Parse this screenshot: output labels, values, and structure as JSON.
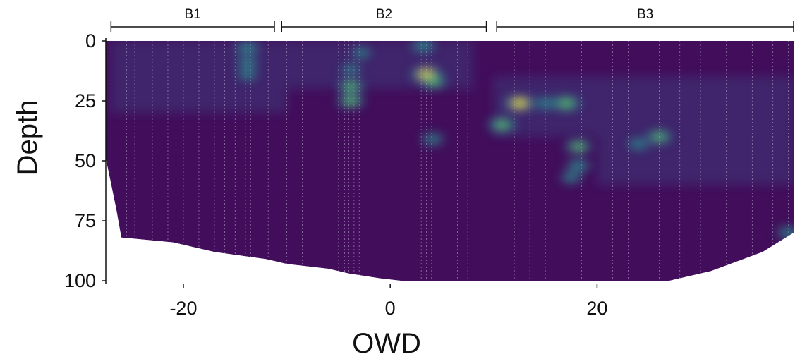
{
  "chart_data": {
    "type": "heatmap",
    "title": "",
    "xlabel": "OWD",
    "ylabel": "Depth",
    "xlim": [
      -27.5,
      39
    ],
    "ylim": [
      0,
      100
    ],
    "y_inverted": true,
    "x_ticks": [
      -20,
      0,
      20
    ],
    "x_tick_labels": [
      "-20",
      "0",
      "20"
    ],
    "y_ticks": [
      0,
      25,
      50,
      75,
      100
    ],
    "y_tick_labels": [
      "0",
      "25",
      "50",
      "75",
      "100"
    ],
    "grid": false,
    "legend": "none",
    "colormap": "viridis",
    "colors": {
      "low": "#420e5c",
      "mid": "#2b8a8c",
      "high": "#f2e52a",
      "sample_lines": "#d8d0e8",
      "axis": "#111111"
    },
    "brackets": [
      {
        "label": "B1",
        "x_start": -27,
        "x_end": -11.2
      },
      {
        "label": "B2",
        "x_start": -10.5,
        "x_end": 9.3
      },
      {
        "label": "B3",
        "x_start": 10.3,
        "x_end": 39
      }
    ],
    "sample_positions": [
      -27,
      -25.5,
      -24.7,
      -23,
      -21.5,
      -20,
      -18.5,
      -17,
      -16,
      -15,
      -14,
      -13.5,
      -11.8,
      -10,
      -8.5,
      -5,
      -4.4,
      -4,
      -3.5,
      -3,
      2,
      3,
      3.5,
      4,
      5,
      6.5,
      7.5,
      10.8,
      12,
      13.5,
      15,
      17,
      18.5,
      20,
      21.5,
      23,
      26,
      28,
      30,
      32.5,
      35,
      37,
      38.5
    ],
    "bottom_boundary": [
      {
        "x": -27.5,
        "depth": 49
      },
      {
        "x": -26.5,
        "depth": 70
      },
      {
        "x": -26,
        "depth": 82
      },
      {
        "x": -21,
        "depth": 84
      },
      {
        "x": -17,
        "depth": 88
      },
      {
        "x": -12,
        "depth": 91
      },
      {
        "x": -10,
        "depth": 93
      },
      {
        "x": -6,
        "depth": 95
      },
      {
        "x": -4,
        "depth": 97
      },
      {
        "x": -1,
        "depth": 99
      },
      {
        "x": 1,
        "depth": 100
      },
      {
        "x": 27,
        "depth": 100
      },
      {
        "x": 31,
        "depth": 96
      },
      {
        "x": 36,
        "depth": 88
      },
      {
        "x": 39,
        "depth": 80
      }
    ],
    "hotspots": [
      {
        "x": -13.8,
        "depth": 3,
        "intensity": 0.55
      },
      {
        "x": -13.8,
        "depth": 9,
        "intensity": 0.4
      },
      {
        "x": -13.8,
        "depth": 14,
        "intensity": 0.35
      },
      {
        "x": -3.8,
        "depth": 19,
        "intensity": 0.65
      },
      {
        "x": -3.8,
        "depth": 25,
        "intensity": 0.7
      },
      {
        "x": -3.8,
        "depth": 12,
        "intensity": 0.3
      },
      {
        "x": -2.8,
        "depth": 5,
        "intensity": 0.3
      },
      {
        "x": 3.2,
        "depth": 2,
        "intensity": 0.55
      },
      {
        "x": 3.5,
        "depth": 14,
        "intensity": 0.95
      },
      {
        "x": 4.2,
        "depth": 17,
        "intensity": 0.6
      },
      {
        "x": 4.1,
        "depth": 41,
        "intensity": 0.45
      },
      {
        "x": 10.8,
        "depth": 35,
        "intensity": 0.75
      },
      {
        "x": 12.5,
        "depth": 26,
        "intensity": 0.95
      },
      {
        "x": 15,
        "depth": 26,
        "intensity": 0.45
      },
      {
        "x": 17,
        "depth": 26,
        "intensity": 0.85
      },
      {
        "x": 18.2,
        "depth": 44,
        "intensity": 0.7
      },
      {
        "x": 18.2,
        "depth": 52,
        "intensity": 0.55
      },
      {
        "x": 17.5,
        "depth": 57,
        "intensity": 0.4
      },
      {
        "x": 26,
        "depth": 40,
        "intensity": 0.65
      },
      {
        "x": 24,
        "depth": 43,
        "intensity": 0.4
      },
      {
        "x": 38.5,
        "depth": 80,
        "intensity": 0.5
      }
    ]
  }
}
